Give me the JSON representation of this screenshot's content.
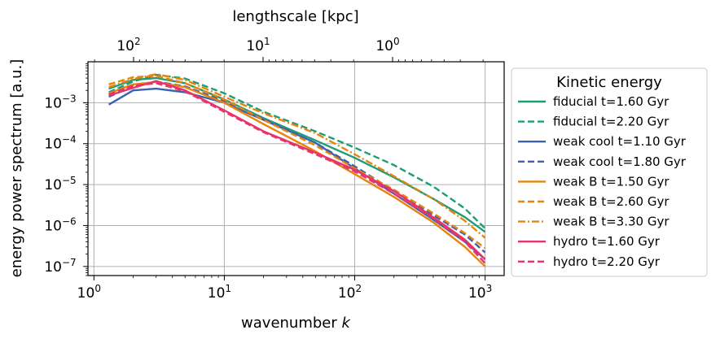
{
  "chart_data": {
    "type": "line",
    "title": "",
    "xlabel": "wavenumber",
    "xlabel_symbol": "k",
    "ylabel": "energy power spectrum [a.u.]",
    "top_xlabel": "lengthscale [kpc]",
    "xscale": "log",
    "yscale": "log",
    "xlim": [
      0.9,
      1400
    ],
    "ylim": [
      6e-08,
      0.01
    ],
    "grid": true,
    "x_ticks": [
      {
        "base": "10",
        "exp": "0"
      },
      {
        "base": "10",
        "exp": "1"
      },
      {
        "base": "10",
        "exp": "2"
      },
      {
        "base": "10",
        "exp": "3"
      }
    ],
    "y_ticks": [
      {
        "base": "10",
        "exp": "−7"
      },
      {
        "base": "10",
        "exp": "−6"
      },
      {
        "base": "10",
        "exp": "−5"
      },
      {
        "base": "10",
        "exp": "−4"
      },
      {
        "base": "10",
        "exp": "−3"
      }
    ],
    "top_ticks": [
      {
        "base": "10",
        "exp": "2"
      },
      {
        "base": "10",
        "exp": "1"
      },
      {
        "base": "10",
        "exp": "0"
      }
    ],
    "legend": {
      "title": "Kinetic energy",
      "location": "outside-right"
    },
    "series": [
      {
        "name": "fiducial t=1.60 Gyr",
        "color": "#1b9e77",
        "dash": "solid",
        "x": [
          1.3,
          2,
          3,
          5,
          10,
          20,
          50,
          100,
          200,
          400,
          700,
          1000
        ],
        "y": [
          0.0022,
          0.0036,
          0.004,
          0.003,
          0.0012,
          0.00042,
          0.00012,
          4.5e-05,
          1.5e-05,
          4.5e-06,
          1.6e-06,
          7e-07
        ]
      },
      {
        "name": "fiducial t=2.20 Gyr",
        "color": "#1b9e77",
        "dash": "dashed",
        "x": [
          1.3,
          2,
          3,
          5,
          10,
          20,
          50,
          100,
          200,
          400,
          700,
          1000
        ],
        "y": [
          0.0018,
          0.0033,
          0.0048,
          0.0039,
          0.0017,
          0.0006,
          0.0002,
          8e-05,
          3e-05,
          9e-06,
          2.6e-06,
          8.5e-07
        ]
      },
      {
        "name": "weak cool t=1.10 Gyr",
        "color": "#3c62ad",
        "dash": "solid",
        "x": [
          1.3,
          2,
          3,
          5,
          10,
          20,
          50,
          100,
          200,
          400,
          700,
          1000
        ],
        "y": [
          0.0009,
          0.002,
          0.0022,
          0.0018,
          0.001,
          0.00038,
          0.000105,
          2.5e-05,
          6e-06,
          1.4e-06,
          4e-07,
          1.5e-07
        ]
      },
      {
        "name": "weak cool t=1.80 Gyr",
        "color": "#3c62ad",
        "dash": "dashed",
        "x": [
          1.3,
          2,
          3,
          5,
          10,
          20,
          50,
          100,
          200,
          400,
          700,
          1000
        ],
        "y": [
          0.0014,
          0.0025,
          0.0033,
          0.0025,
          0.0011,
          0.0004,
          0.000105,
          2.8e-05,
          7e-06,
          1.8e-06,
          6e-07,
          2.2e-07
        ]
      },
      {
        "name": "weak B t=1.50 Gyr",
        "color": "#e6850e",
        "dash": "solid",
        "x": [
          1.3,
          2,
          3,
          5,
          10,
          20,
          50,
          100,
          200,
          400,
          700,
          1000
        ],
        "y": [
          0.0017,
          0.0028,
          0.0032,
          0.0024,
          0.001,
          0.0003,
          6.5e-05,
          1.8e-05,
          5e-06,
          1.2e-06,
          3e-07,
          1e-07
        ]
      },
      {
        "name": "weak B t=2.60 Gyr",
        "color": "#e6850e",
        "dash": "dashed",
        "x": [
          1.3,
          2,
          3,
          5,
          10,
          20,
          50,
          100,
          200,
          400,
          700,
          1000
        ],
        "y": [
          0.0028,
          0.0042,
          0.0045,
          0.003,
          0.0012,
          0.00038,
          9e-05,
          2.5e-05,
          7.5e-06,
          2e-06,
          6.5e-07,
          2.8e-07
        ]
      },
      {
        "name": "weak B t=3.30 Gyr",
        "color": "#e6850e",
        "dash": "dashdot",
        "x": [
          1.3,
          2,
          3,
          5,
          10,
          20,
          50,
          100,
          200,
          400,
          700,
          1000
        ],
        "y": [
          0.0024,
          0.0038,
          0.005,
          0.0036,
          0.0014,
          0.00055,
          0.00018,
          5.5e-05,
          1.6e-05,
          4.5e-06,
          1.3e-06,
          5e-07
        ]
      },
      {
        "name": "hydro t=1.60 Gyr",
        "color": "#e8336b",
        "dash": "solid",
        "x": [
          1.3,
          2,
          3,
          5,
          10,
          20,
          50,
          100,
          200,
          400,
          700,
          1000
        ],
        "y": [
          0.0015,
          0.0023,
          0.0034,
          0.002,
          0.00065,
          0.0002,
          6e-05,
          2.3e-05,
          7e-06,
          1.6e-06,
          4.5e-07,
          1.5e-07
        ]
      },
      {
        "name": "hydro t=2.20 Gyr",
        "color": "#e8336b",
        "dash": "dashed",
        "x": [
          1.3,
          2,
          3,
          5,
          10,
          20,
          50,
          100,
          200,
          400,
          700,
          1000
        ],
        "y": [
          0.0016,
          0.0026,
          0.003,
          0.0019,
          0.0006,
          0.00019,
          5.5e-05,
          2.1e-05,
          6e-06,
          1.5e-06,
          4e-07,
          1.2e-07
        ]
      }
    ]
  }
}
